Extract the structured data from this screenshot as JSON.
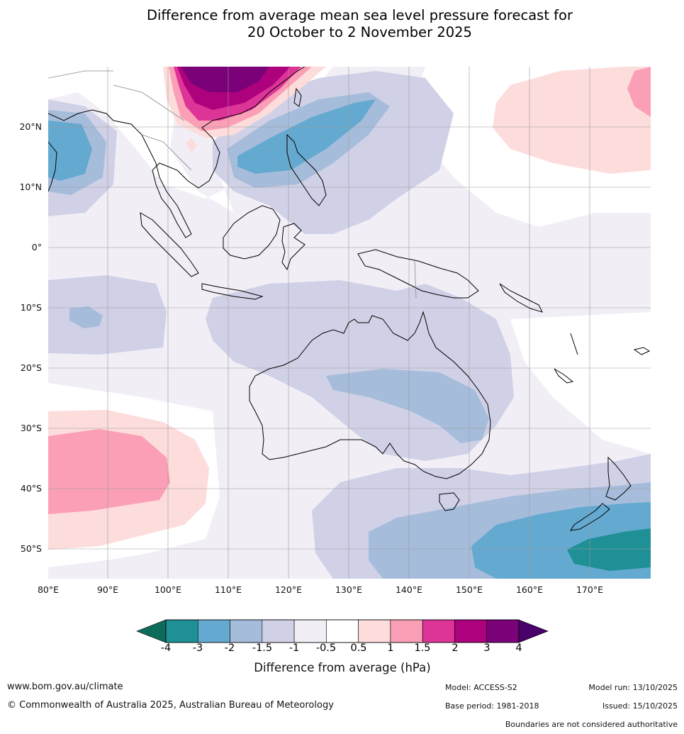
{
  "title": {
    "line1": "Difference from average mean sea level pressure forecast for",
    "line2": "20 October to 2 November 2025"
  },
  "map": {
    "lat_labels": [
      "20°N",
      "10°N",
      "0°",
      "10°S",
      "20°S",
      "30°S",
      "40°S",
      "50°S"
    ],
    "lon_labels": [
      "80°E",
      "90°E",
      "100°E",
      "110°E",
      "120°E",
      "130°E",
      "140°E",
      "150°E",
      "160°E",
      "170°E"
    ]
  },
  "legend": {
    "ticks": [
      "-4",
      "-3",
      "-2",
      "-1.5",
      "-1",
      "-0.5",
      "0.5",
      "1",
      "1.5",
      "2",
      "3",
      "4"
    ],
    "label": "Difference from average (hPa)",
    "colors": {
      "under": "#0d6b5a",
      "bins": [
        "#1e9096",
        "#64a9d0",
        "#a6bcdb",
        "#d0d1e6",
        "#f1eef6",
        "#ffffff",
        "#fddcdc",
        "#fa9fb5",
        "#dd3497",
        "#ae017e",
        "#7a0177"
      ],
      "over": "#49006a"
    }
  },
  "footer": {
    "url": "www.bom.gov.au/climate",
    "copyright": "© Commonwealth of Australia 2025, Australian Bureau of Meteorology",
    "model": "Model: ACCESS-S2",
    "model_run": "Model run: 13/10/2025",
    "base_period": "Base period: 1981-2018",
    "issued": "Issued: 15/10/2025",
    "disclaimer": "Boundaries are not considered authoritative"
  }
}
